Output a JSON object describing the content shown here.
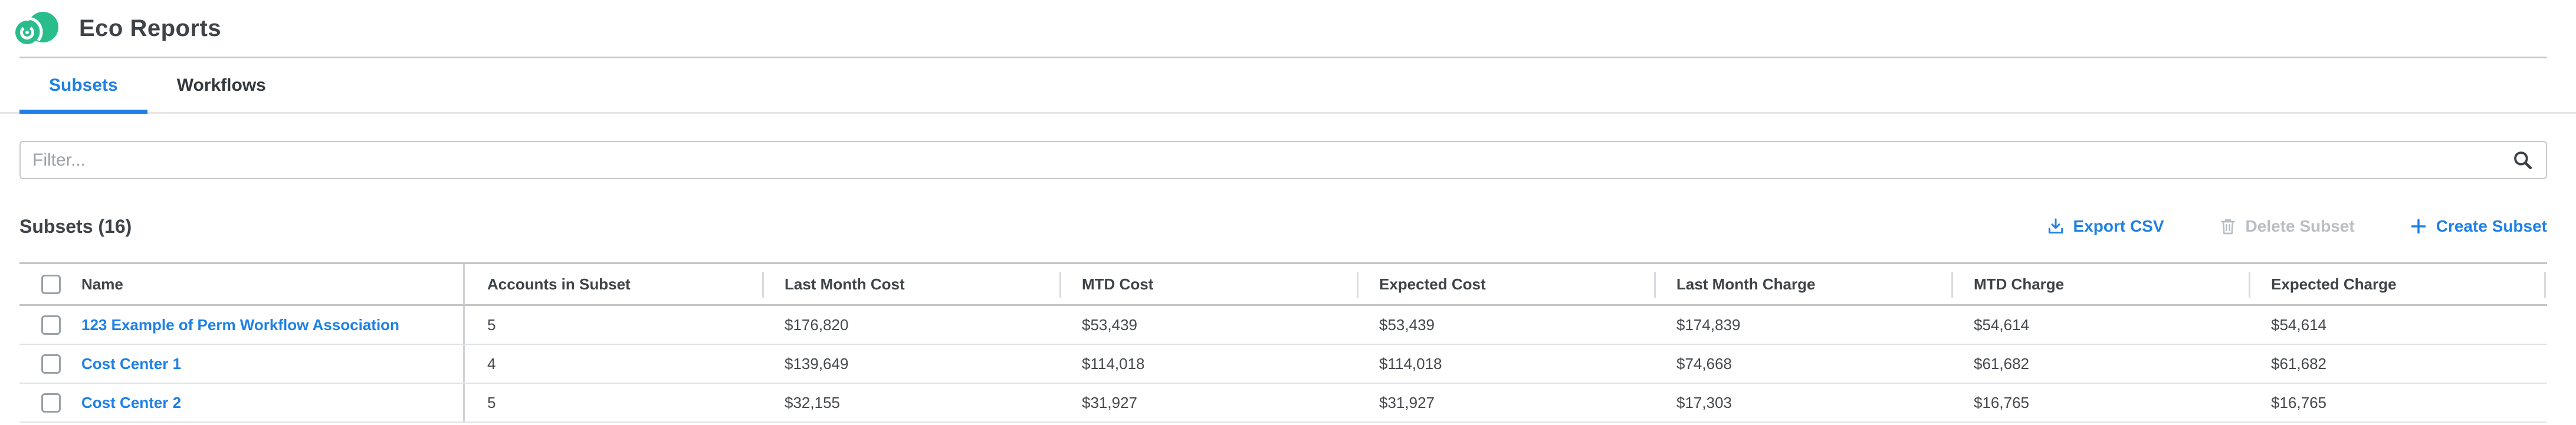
{
  "app": {
    "title": "Eco Reports"
  },
  "tabs": [
    {
      "label": "Subsets",
      "active": true
    },
    {
      "label": "Workflows",
      "active": false
    }
  ],
  "filter": {
    "placeholder": "Filter...",
    "value": ""
  },
  "list_header": {
    "title": "Subsets (16)"
  },
  "actions": {
    "export_csv": "Export CSV",
    "delete_subset": "Delete Subset",
    "create_subset": "Create Subset",
    "delete_disabled": true
  },
  "icons": {
    "logo": "eco-reports-swirl-logo",
    "search": "search-icon",
    "export": "download-icon",
    "delete": "trash-icon",
    "create": "plus-icon"
  },
  "colors": {
    "accent_blue": "#1d80e6",
    "brand_green": "#2abd8c",
    "disabled_gray": "#b9bec4",
    "text_dark": "#3e4347"
  },
  "table": {
    "columns": [
      "Name",
      "Accounts in Subset",
      "Last Month Cost",
      "MTD Cost",
      "Expected Cost",
      "Last Month Charge",
      "MTD Charge",
      "Expected Charge"
    ],
    "rows": [
      {
        "name": "123 Example of Perm Workflow Association",
        "values": [
          "5",
          "$176,820",
          "$53,439",
          "$53,439",
          "$174,839",
          "$54,614",
          "$54,614"
        ],
        "checked": false
      },
      {
        "name": "Cost Center 1",
        "values": [
          "4",
          "$139,649",
          "$114,018",
          "$114,018",
          "$74,668",
          "$61,682",
          "$61,682"
        ],
        "checked": false
      },
      {
        "name": "Cost Center 2",
        "values": [
          "5",
          "$32,155",
          "$31,927",
          "$31,927",
          "$17,303",
          "$16,765",
          "$16,765"
        ],
        "checked": false
      }
    ]
  }
}
